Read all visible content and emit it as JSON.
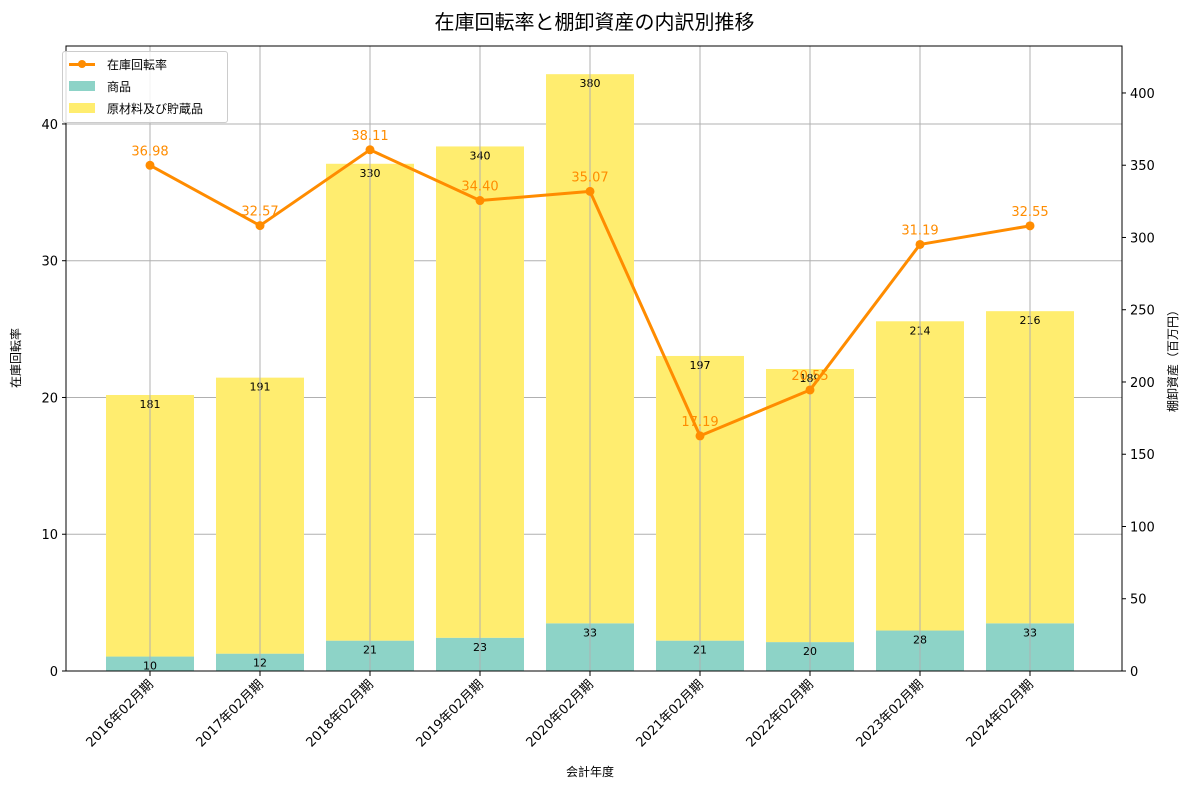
{
  "chart_data": {
    "type": "bar+line",
    "title": "在庫回転率と棚卸資産の内訳別推移",
    "xlabel": "会計年度",
    "ylabel_left": "在庫回転率",
    "ylabel_right": "棚卸資産（百万円）",
    "categories": [
      "2016年02月期",
      "2017年02月期",
      "2018年02月期",
      "2019年02月期",
      "2020年02月期",
      "2021年02月期",
      "2022年02月期",
      "2023年02月期",
      "2024年02月期"
    ],
    "series": [
      {
        "name": "在庫回転率",
        "type": "line",
        "axis": "left",
        "color": "#ff8c00",
        "values": [
          36.98,
          32.57,
          38.11,
          34.4,
          35.07,
          17.19,
          20.55,
          31.19,
          32.55
        ],
        "labels": [
          "36.98",
          "32.57",
          "38.11",
          "34.40",
          "35.07",
          "17.19",
          "20.55",
          "31.19",
          "32.55"
        ]
      },
      {
        "name": "商品",
        "type": "stacked_bar",
        "axis": "right",
        "color": "#8dd3c7",
        "values": [
          10,
          12,
          21,
          23,
          33,
          21,
          20,
          28,
          33
        ]
      },
      {
        "name": "原材料及び貯蔵品",
        "type": "stacked_bar",
        "axis": "right",
        "color": "#ffed6f",
        "values": [
          181,
          191,
          330,
          340,
          380,
          197,
          189,
          214,
          216
        ]
      }
    ],
    "ylim_left": [
      0,
      45.7
    ],
    "ylim_right": [
      0,
      432.5
    ],
    "yticks_left": [
      "0",
      "10",
      "20",
      "30",
      "40"
    ],
    "yticks_right": [
      "0",
      "50",
      "100",
      "150",
      "200",
      "250",
      "300",
      "350",
      "400"
    ],
    "grid": true,
    "legend_position": "upper left"
  },
  "legend": {
    "items": [
      {
        "label": "在庫回転率"
      },
      {
        "label": "商品"
      },
      {
        "label": "原材料及び貯蔵品"
      }
    ]
  }
}
